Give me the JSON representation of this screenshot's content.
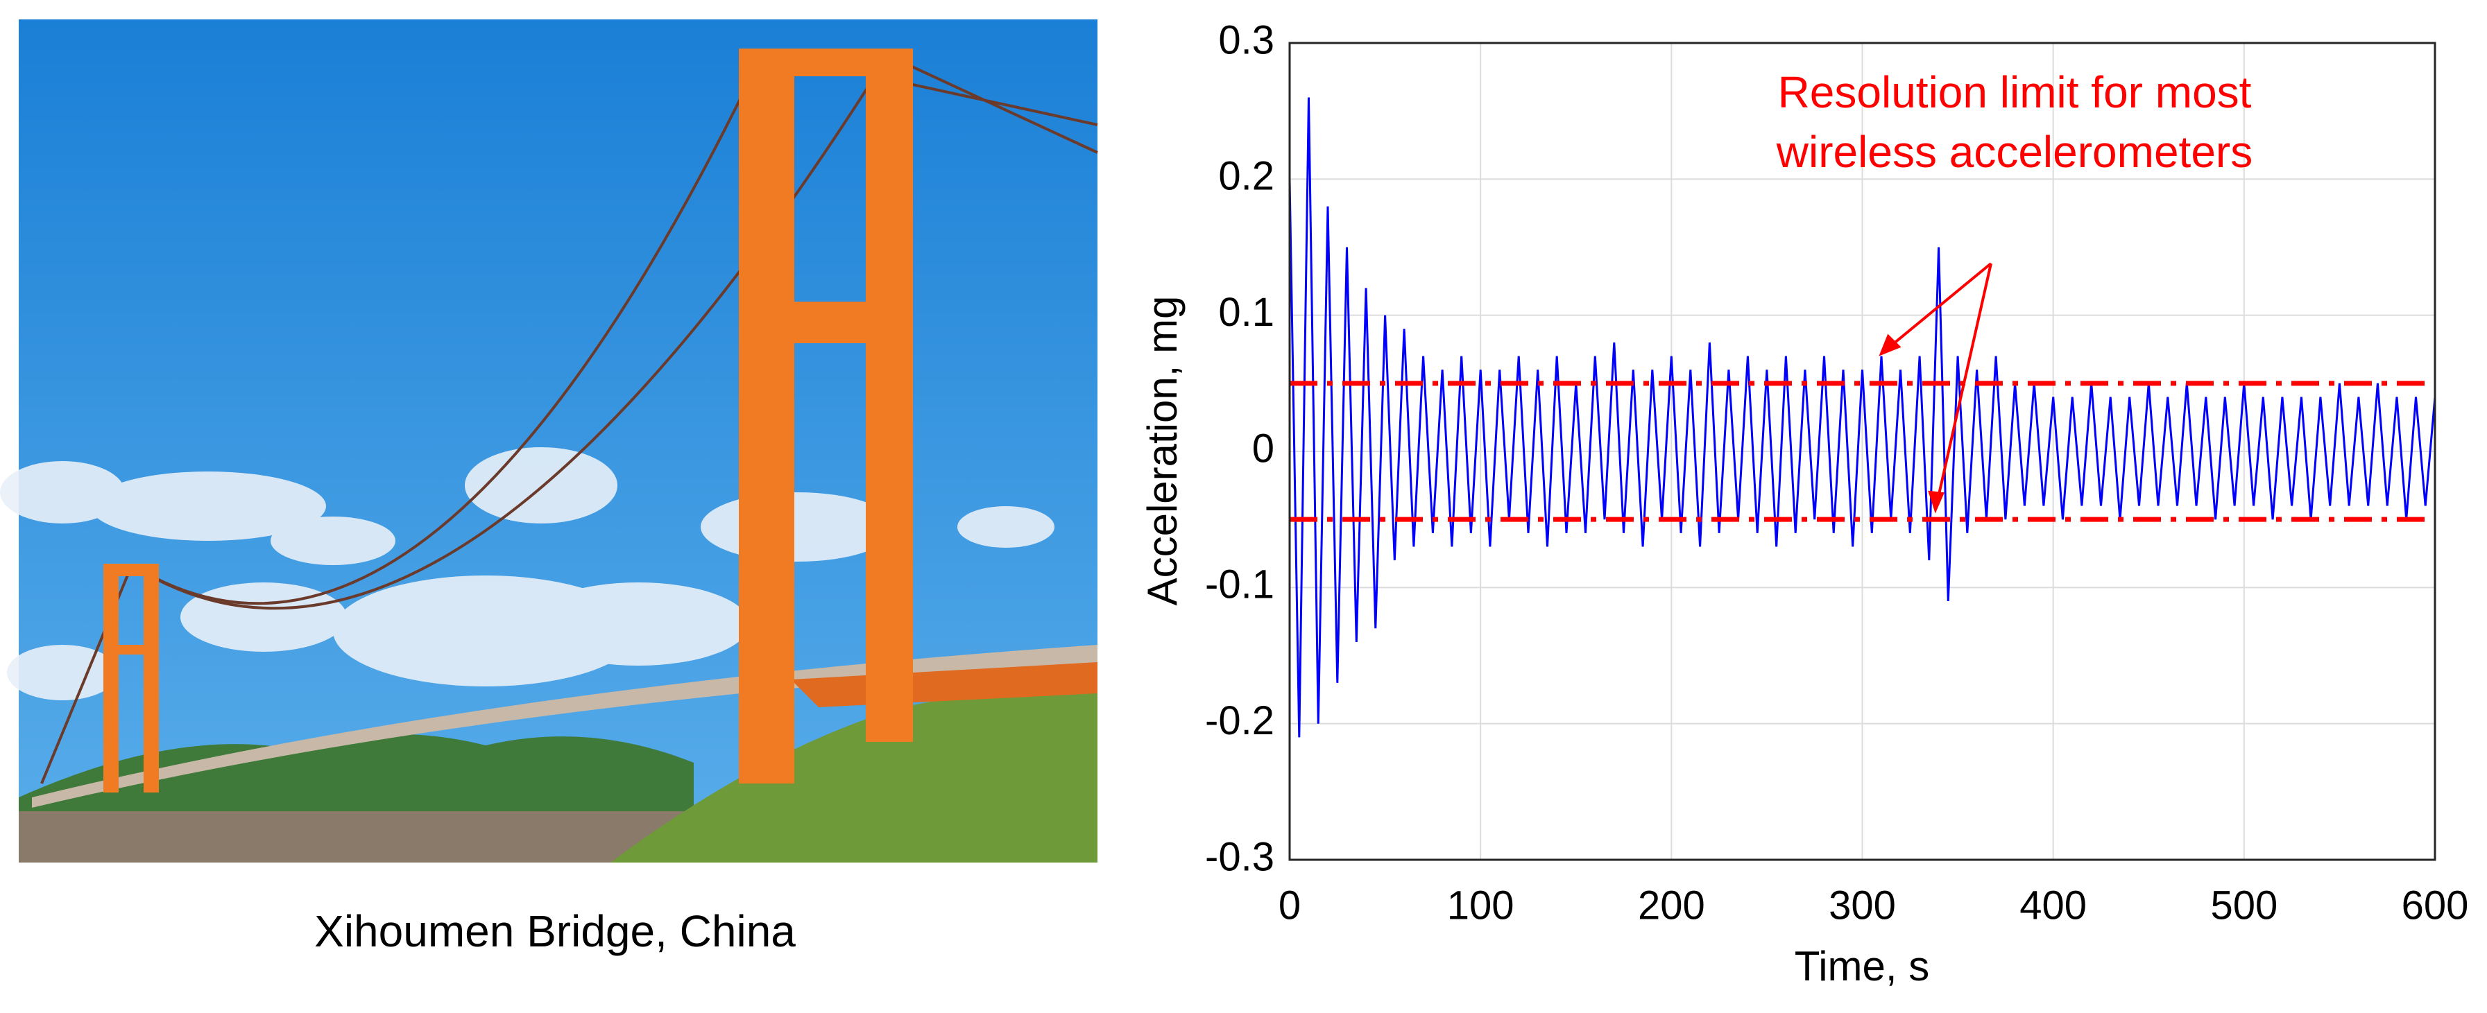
{
  "caption": "Xihoumen Bridge, China",
  "chart_data": {
    "type": "line",
    "xlabel": "Time, s",
    "ylabel": "Acceleration, mg",
    "x": [
      0,
      5,
      10,
      15,
      20,
      25,
      30,
      35,
      40,
      45,
      50,
      55,
      60,
      65,
      70,
      75,
      80,
      85,
      90,
      95,
      100,
      105,
      110,
      115,
      120,
      125,
      130,
      135,
      140,
      145,
      150,
      155,
      160,
      165,
      170,
      175,
      180,
      185,
      190,
      195,
      200,
      205,
      210,
      215,
      220,
      225,
      230,
      235,
      240,
      245,
      250,
      255,
      260,
      265,
      270,
      275,
      280,
      285,
      290,
      295,
      300,
      305,
      310,
      315,
      320,
      325,
      330,
      335,
      340,
      345,
      350,
      355,
      360,
      365,
      370,
      375,
      380,
      385,
      390,
      395,
      400,
      405,
      410,
      415,
      420,
      425,
      430,
      435,
      440,
      445,
      450,
      455,
      460,
      465,
      470,
      475,
      480,
      485,
      490,
      495,
      500,
      505,
      510,
      515,
      520,
      525,
      530,
      535,
      540,
      545,
      550,
      555,
      560,
      565,
      570,
      575,
      580,
      585,
      590,
      595,
      600
    ],
    "series": [
      {
        "color": "#0000ff",
        "values": [
          0.2,
          -0.21,
          0.26,
          -0.2,
          0.18,
          -0.17,
          0.15,
          -0.14,
          0.12,
          -0.13,
          0.1,
          -0.08,
          0.09,
          -0.07,
          0.07,
          -0.06,
          0.06,
          -0.07,
          0.07,
          -0.06,
          0.06,
          -0.07,
          0.06,
          -0.05,
          0.07,
          -0.06,
          0.06,
          -0.07,
          0.07,
          -0.06,
          0.05,
          -0.06,
          0.07,
          -0.05,
          0.08,
          -0.06,
          0.06,
          -0.07,
          0.06,
          -0.05,
          0.07,
          -0.06,
          0.06,
          -0.07,
          0.08,
          -0.06,
          0.06,
          -0.05,
          0.07,
          -0.06,
          0.06,
          -0.07,
          0.07,
          -0.06,
          0.06,
          -0.05,
          0.07,
          -0.06,
          0.06,
          -0.07,
          0.06,
          -0.06,
          0.07,
          -0.05,
          0.06,
          -0.06,
          0.07,
          -0.08,
          0.15,
          -0.11,
          0.07,
          -0.06,
          0.06,
          -0.05,
          0.07,
          -0.05,
          0.05,
          -0.04,
          0.05,
          -0.04,
          0.04,
          -0.05,
          0.04,
          -0.04,
          0.05,
          -0.04,
          0.04,
          -0.05,
          0.04,
          -0.04,
          0.05,
          -0.04,
          0.04,
          -0.04,
          0.05,
          -0.04,
          0.04,
          -0.05,
          0.04,
          -0.04,
          0.05,
          -0.04,
          0.04,
          -0.05,
          0.04,
          -0.04,
          0.04,
          -0.05,
          0.04,
          -0.04,
          0.05,
          -0.04,
          0.04,
          -0.04,
          0.05,
          -0.04,
          0.04,
          -0.05,
          0.04,
          -0.04,
          0.04
        ]
      }
    ],
    "hlines": [
      0.05,
      -0.05
    ],
    "hline_color": "#ff0000",
    "annotation": {
      "lines": [
        "Resolution limit for most",
        "wireless accelerometers"
      ],
      "color": "#ff0000"
    },
    "xlim": [
      0,
      600
    ],
    "xticks": [
      0,
      100,
      200,
      300,
      400,
      500,
      600
    ],
    "ylim": [
      -0.3,
      0.3
    ],
    "yticks": [
      -0.3,
      -0.2,
      -0.1,
      0,
      0.1,
      0.2,
      0.3
    ],
    "grid": true
  }
}
